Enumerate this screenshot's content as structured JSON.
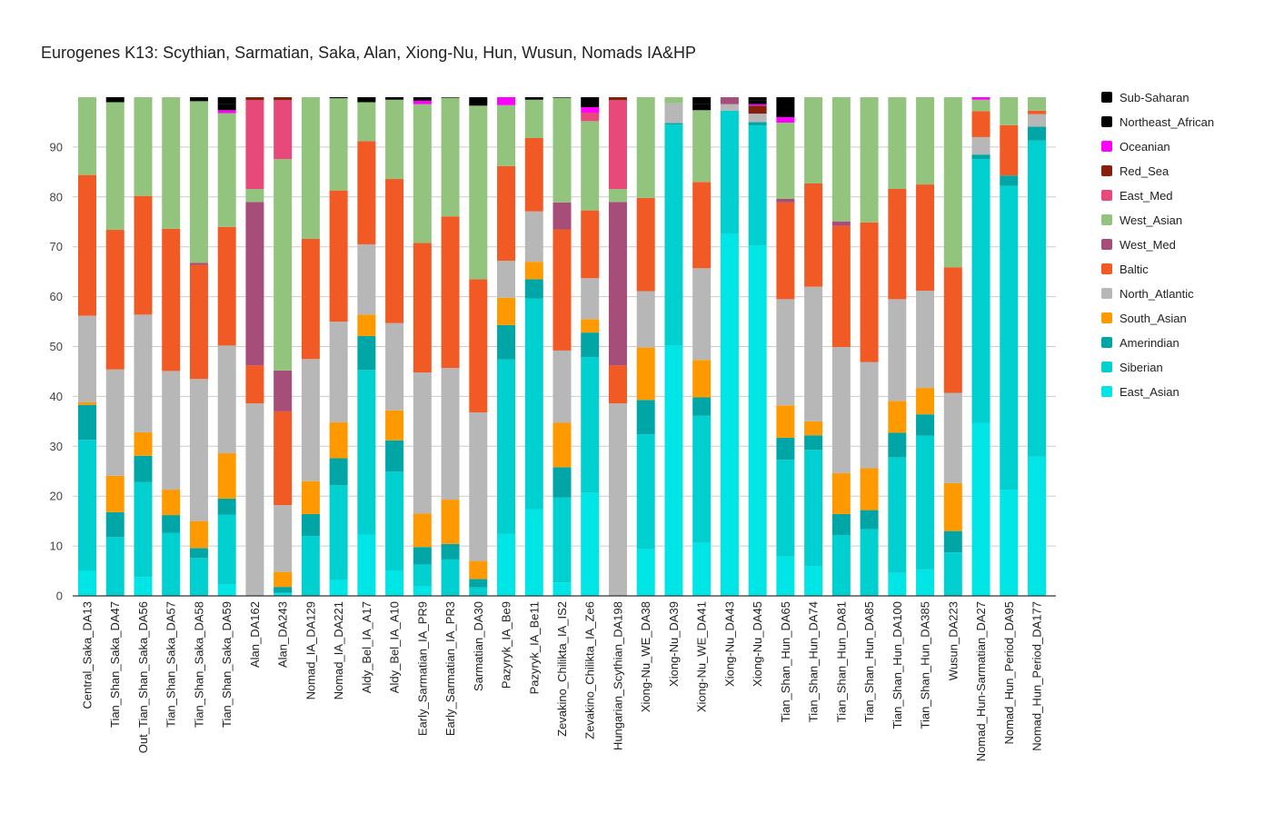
{
  "chart_data": {
    "type": "bar",
    "stacked": true,
    "title": "Eurogenes K13: Scythian, Sarmatian, Saka, Alan, Xiong-Nu, Hun, Wusun, Nomads IA&HP",
    "xlabel": "",
    "ylabel": "",
    "ylim": [
      0,
      100
    ],
    "yticks": [
      0,
      10,
      20,
      30,
      40,
      50,
      60,
      70,
      80,
      90
    ],
    "grid": true,
    "legend_position": "right",
    "categories": [
      "Central_Saka_DA13",
      "Tian_Shan_Saka_DA47",
      "Out_Tian_Shan_Saka_DA56",
      "Tian_Shan_Saka_DA57",
      "Tian_Shan_Saka_DA58",
      "Tian_Shan_Saka_DA59",
      "Alan_DA162",
      "Alan_DA243",
      "Nomad_IA_DA129",
      "Nomad_IA_DA221",
      "Aldy_Bel_IA_A17",
      "Aldy_Bel_IA_A10",
      "Early_Sarmatian_IA_PR9",
      "Early_Sarmatian_IA_PR3",
      "Sarmatian_DA30",
      "Pazyryk_IA_Be9",
      "Pazyryk_IA_Be11",
      "Zevakino_Chilikta_IA_IS2",
      "Zevakino_Chilikta_IA_Ze6",
      "Hungarian_Scythian_DA198",
      "Xiong-Nu_WE_DA38",
      "Xiong-Nu_DA39",
      "Xiong-Nu_WE_DA41",
      "Xiong-Nu_DA43",
      "Xiong-Nu_DA45",
      "Tian_Shan_Hun_DA65",
      "Tian_Shan_Hun_DA74",
      "Tian_Shan_Hun_DA81",
      "Tian_Shan_Hun_DA85",
      "Tian_Shan_Hun_DA100",
      "Tian_Shan_Hun_DA385",
      "Wusun_DA223",
      "Nomad_Hun-Sarmatian_DA27",
      "Nomad_Hun_Period_DA95",
      "Nomad_Hun_Period_DA177"
    ],
    "series": [
      {
        "name": "East_Asian",
        "color": "#00e5e5",
        "values": [
          5,
          0,
          3.8,
          0,
          0,
          2.3,
          0,
          0.6,
          0,
          3.2,
          12.3,
          5.1,
          2,
          0,
          0,
          12.4,
          17.4,
          2.7,
          20.7,
          0,
          9.4,
          50.2,
          10.6,
          72.6,
          70.3,
          7.9,
          6,
          0,
          0,
          4.6,
          5.3,
          0,
          34.7,
          21.3,
          27.9
        ]
      },
      {
        "name": "Siberian",
        "color": "#00d0d0",
        "values": [
          26.3,
          11.8,
          19,
          12.6,
          7.6,
          14,
          0,
          0,
          12,
          19,
          33,
          19.8,
          4.3,
          7.3,
          1.7,
          35,
          42.2,
          17,
          27.2,
          0,
          23,
          44.3,
          25.5,
          24.7,
          24,
          19.4,
          23.3,
          12.2,
          13.4,
          23.2,
          26.8,
          8.7,
          52.9,
          60.9,
          63.4
        ]
      },
      {
        "name": "Amerindian",
        "color": "#00a6a6",
        "values": [
          7,
          5,
          5.3,
          3.6,
          2,
          3.2,
          0,
          1.2,
          4.4,
          5.4,
          6.8,
          6.3,
          3.5,
          3.1,
          1.7,
          6.9,
          3.9,
          6.1,
          4.9,
          0,
          6.9,
          0.3,
          3.7,
          0,
          0.7,
          4.4,
          2.9,
          4.2,
          3.8,
          4.9,
          4.3,
          4.3,
          0.9,
          2.1,
          2.8
        ]
      },
      {
        "name": "South_Asian",
        "color": "#ff9900",
        "values": [
          0.5,
          7.3,
          4.7,
          5.1,
          5.4,
          9.1,
          0,
          3,
          6.6,
          7.2,
          4.3,
          6,
          6.7,
          8.9,
          3.6,
          5.5,
          3.5,
          8.9,
          2.7,
          0,
          10.5,
          0,
          7.5,
          0,
          0,
          6.5,
          2.8,
          8.2,
          8.4,
          6.4,
          5.3,
          9.6,
          0,
          0,
          0
        ]
      },
      {
        "name": "North_Atlantic",
        "color": "#b7b7b7",
        "values": [
          17.4,
          21.3,
          23.6,
          23.8,
          28.5,
          21.6,
          38.6,
          13.4,
          24.5,
          20.2,
          14.1,
          17.5,
          28.3,
          26.4,
          29.8,
          7.4,
          10.1,
          14.5,
          8.2,
          38.6,
          11.3,
          4,
          18.4,
          1.3,
          1.7,
          21.3,
          27,
          25.3,
          21.3,
          20.4,
          19.5,
          18.1,
          3.5,
          0,
          2.5
        ]
      },
      {
        "name": "Baltic",
        "color": "#f15a24",
        "values": [
          28.2,
          28,
          23.8,
          28.5,
          22.9,
          23.8,
          7.6,
          18.8,
          24.1,
          26.3,
          20.7,
          28.9,
          26,
          30.4,
          26.7,
          19,
          14.7,
          24.3,
          13.6,
          7.6,
          18.7,
          0,
          17.3,
          0,
          0,
          19.4,
          20.7,
          24.3,
          28,
          22.1,
          21.3,
          25.2,
          5.2,
          10.1,
          0.7
        ]
      },
      {
        "name": "West_Med",
        "color": "#a64d79",
        "values": [
          0,
          0,
          0,
          0,
          0.4,
          0,
          32.8,
          8.2,
          0,
          0,
          0,
          0,
          0,
          0,
          0,
          0,
          0,
          5.4,
          0,
          32.8,
          0,
          0,
          0,
          1.4,
          0,
          0.7,
          0,
          0.9,
          0,
          0,
          0,
          0,
          0,
          0,
          0
        ]
      },
      {
        "name": "West_Asian",
        "color": "#93c47d",
        "values": [
          15.6,
          25.6,
          19.8,
          26.4,
          32.4,
          22.8,
          2.6,
          42.4,
          28.4,
          18.5,
          7.8,
          15.9,
          27.8,
          23.8,
          34.8,
          12.2,
          7.7,
          21,
          17.9,
          2.6,
          20.2,
          1.2,
          14.4,
          0,
          0,
          15.3,
          17.3,
          24.9,
          25.1,
          18.4,
          17.5,
          34.1,
          2.3,
          5.6,
          2.7
        ]
      },
      {
        "name": "East_Med",
        "color": "#e8497b",
        "values": [
          0,
          0,
          0,
          0,
          0,
          0,
          17.8,
          11.8,
          0,
          0,
          0,
          0,
          0,
          0,
          0,
          0,
          0,
          0,
          1.7,
          17.8,
          0,
          0,
          0,
          0,
          0,
          0,
          0,
          0,
          0,
          0,
          0,
          0,
          0,
          0,
          0
        ]
      },
      {
        "name": "Red_Sea",
        "color": "#85200c",
        "values": [
          0,
          0,
          0,
          0,
          0,
          0,
          0.6,
          0.6,
          0,
          0,
          0,
          0,
          0,
          0,
          0,
          0,
          0,
          0,
          0,
          0.6,
          0,
          0,
          0,
          0,
          1.6,
          0,
          0,
          0,
          0,
          0,
          0,
          0,
          0,
          0,
          0
        ]
      },
      {
        "name": "Oceanian",
        "color": "#ff00ff",
        "values": [
          0,
          0,
          0,
          0,
          0,
          0.6,
          0,
          0,
          0,
          0,
          0,
          0,
          0.7,
          0,
          0,
          1.6,
          0,
          0,
          1.1,
          0,
          0,
          0,
          0,
          0,
          0.3,
          1.1,
          0,
          0,
          0,
          0,
          0,
          0,
          0.5,
          0,
          0
        ]
      },
      {
        "name": "Northeast_African",
        "color": "#000000",
        "values": [
          0,
          1,
          0,
          0,
          0.8,
          1.3,
          0,
          0,
          0,
          0.2,
          1,
          0.5,
          0.7,
          0.1,
          1.7,
          0,
          0.5,
          0.1,
          1,
          0,
          0,
          0,
          1.3,
          0,
          0.7,
          2,
          0,
          0,
          0,
          0,
          0,
          0,
          0,
          0,
          0
        ]
      },
      {
        "name": "Sub-Saharan",
        "color": "#000000",
        "values": [
          0,
          0,
          0,
          0,
          0,
          1.3,
          0,
          0,
          0,
          0,
          0,
          0,
          0,
          0,
          0,
          0,
          0,
          0,
          1,
          0,
          0,
          0,
          1.3,
          0,
          0.7,
          2,
          0,
          0,
          0,
          0,
          0,
          0,
          0,
          0,
          0
        ]
      }
    ]
  }
}
